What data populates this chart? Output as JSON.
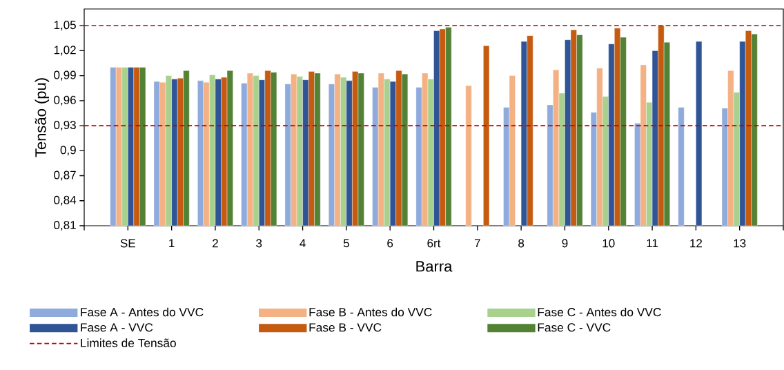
{
  "chart_data": {
    "type": "bar",
    "xlabel": "Barra",
    "ylabel": "Tensão (pu)",
    "categories": [
      "SE",
      "1",
      "2",
      "3",
      "4",
      "5",
      "6",
      "6rt",
      "7",
      "8",
      "9",
      "10",
      "11",
      "12",
      "13"
    ],
    "series": [
      {
        "name": "Fase A - Antes do VVC",
        "color": "#8faadc",
        "values": [
          1.0,
          0.983,
          0.984,
          0.981,
          0.98,
          0.98,
          0.976,
          0.976,
          null,
          0.952,
          0.955,
          0.946,
          0.933,
          0.952,
          0.951
        ]
      },
      {
        "name": "Fase B - Antes do VVC",
        "color": "#f4b183",
        "values": [
          1.0,
          0.982,
          0.982,
          0.993,
          0.992,
          0.992,
          0.993,
          0.993,
          0.978,
          0.99,
          0.997,
          0.999,
          1.003,
          null,
          0.996
        ]
      },
      {
        "name": "Fase C - Antes do VVC",
        "color": "#a9d18e",
        "values": [
          1.0,
          0.99,
          0.991,
          0.99,
          0.989,
          0.988,
          0.986,
          0.986,
          null,
          null,
          0.969,
          0.965,
          0.958,
          null,
          0.97
        ]
      },
      {
        "name": "Fase A - VVC",
        "color": "#2f5597",
        "values": [
          1.0,
          0.986,
          0.986,
          0.985,
          0.985,
          0.984,
          0.983,
          1.044,
          null,
          1.031,
          1.033,
          1.028,
          1.02,
          1.031,
          1.031
        ]
      },
      {
        "name": "Fase B - VVC",
        "color": "#c55a11",
        "values": [
          1.0,
          0.987,
          0.988,
          0.996,
          0.995,
          0.995,
          0.996,
          1.046,
          1.026,
          1.038,
          1.045,
          1.047,
          1.05,
          null,
          1.044
        ]
      },
      {
        "name": "Fase C - VVC",
        "color": "#548235",
        "values": [
          1.0,
          0.996,
          0.996,
          0.994,
          0.993,
          0.993,
          0.992,
          1.048,
          null,
          null,
          1.039,
          1.036,
          1.03,
          null,
          1.04
        ]
      }
    ],
    "ylim": [
      0.81,
      1.07
    ],
    "yticks": [
      {
        "value": 0.81,
        "label": "0,81"
      },
      {
        "value": 0.84,
        "label": "0,84"
      },
      {
        "value": 0.87,
        "label": "0,87"
      },
      {
        "value": 0.9,
        "label": "0,9"
      },
      {
        "value": 0.93,
        "label": "0,93"
      },
      {
        "value": 0.96,
        "label": "0,96"
      },
      {
        "value": 0.99,
        "label": "0,99"
      },
      {
        "value": 1.02,
        "label": "1,02"
      },
      {
        "value": 1.05,
        "label": "1,05"
      }
    ],
    "ref_lines": [
      {
        "axis": "y",
        "value": 1.05,
        "label": "Limites de Tensão",
        "color": "#c00000",
        "line_style": "dashed"
      },
      {
        "axis": "y",
        "value": 0.93,
        "color": "#c00000",
        "line_style": "dashed"
      }
    ],
    "legend": "bottom"
  }
}
